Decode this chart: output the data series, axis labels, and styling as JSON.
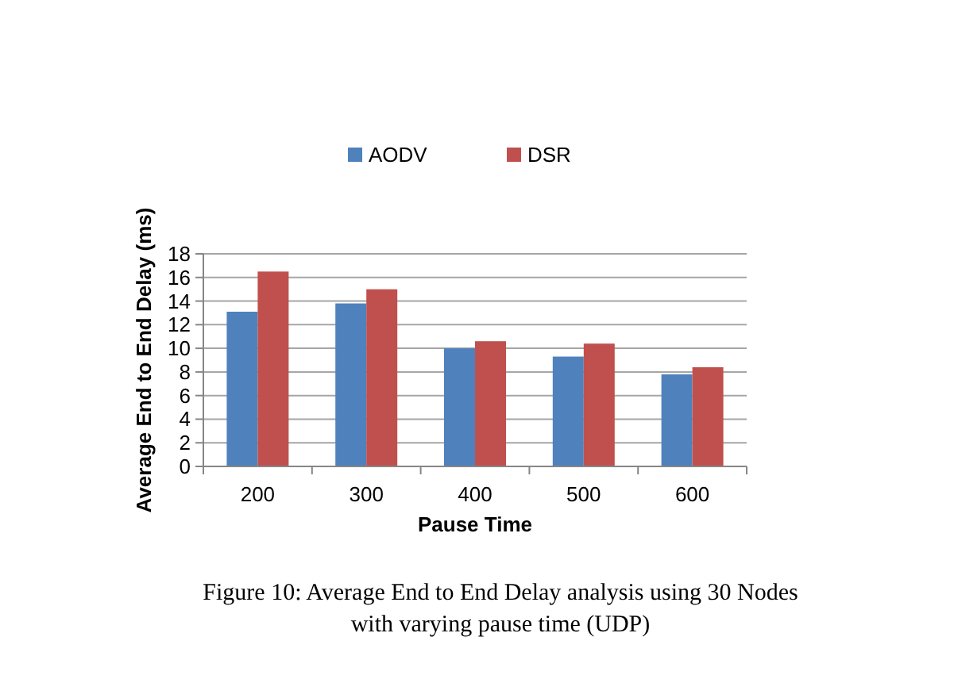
{
  "chart_data": {
    "type": "bar",
    "xlabel": "Pause Time",
    "ylabel": "Average End to End Delay (ms)",
    "categories": [
      "200",
      "300",
      "400",
      "500",
      "600"
    ],
    "series": [
      {
        "name": "AODV",
        "color": "#4f81bd",
        "values": [
          13.1,
          13.8,
          10.0,
          9.3,
          7.8
        ]
      },
      {
        "name": "DSR",
        "color": "#c0504d",
        "values": [
          16.5,
          15.0,
          10.6,
          10.4,
          8.4
        ]
      }
    ],
    "ylim": [
      0,
      18
    ],
    "yticks": [
      0,
      2,
      4,
      6,
      8,
      10,
      12,
      14,
      16,
      18
    ],
    "grid": "y",
    "legend": "top",
    "annotations": [
      "Figure 10: Average End to End Delay analysis using 30 Nodes with varying pause time (UDP)"
    ]
  }
}
